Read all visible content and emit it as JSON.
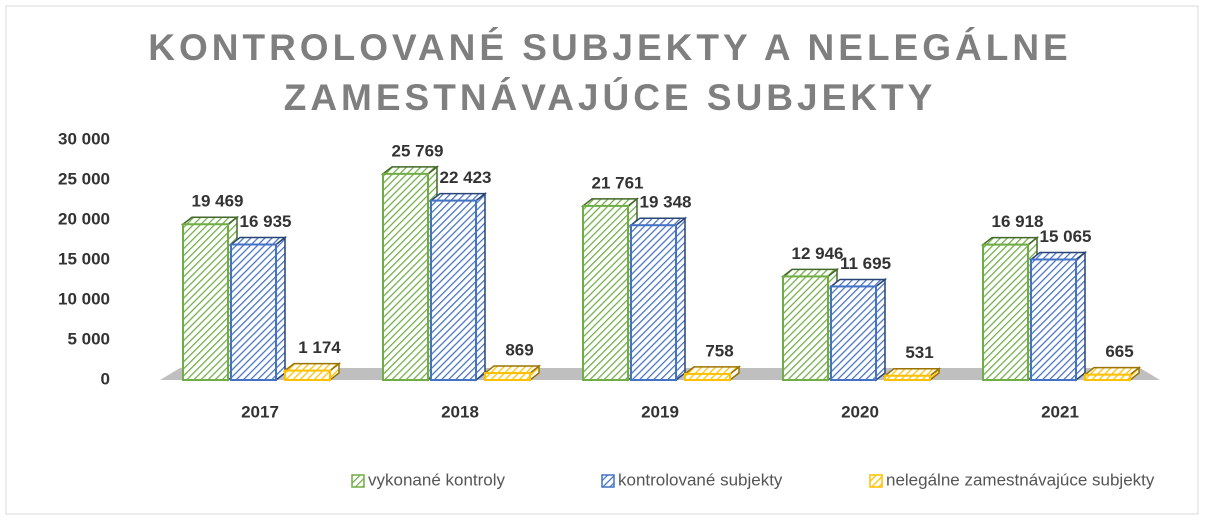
{
  "chart_data": {
    "type": "bar3d",
    "title": [
      "KONTROLOVANÉ SUBJEKTY A NELEGÁLNE",
      "ZAMESTNÁVAJÚCE SUBJEKTY"
    ],
    "categories": [
      "2017",
      "2018",
      "2019",
      "2020",
      "2021"
    ],
    "series": [
      {
        "name": "vykonané kontroly",
        "color": "#70ad47",
        "values": [
          19469,
          25769,
          21761,
          12946,
          16918
        ],
        "value_labels": [
          "19 469",
          "25 769",
          "21 761",
          "12 946",
          "16 918"
        ]
      },
      {
        "name": "kontrolované subjekty",
        "color": "#4472c4",
        "values": [
          16935,
          22423,
          19348,
          11695,
          15065
        ],
        "value_labels": [
          "16 935",
          "22 423",
          "19 348",
          "11 695",
          "15 065"
        ]
      },
      {
        "name": "nelegálne zamestnávajúce subjekty",
        "color": "#ffc000",
        "values": [
          1174,
          869,
          758,
          531,
          665
        ],
        "value_labels": [
          "1 174",
          "869",
          "758",
          "531",
          "665"
        ]
      }
    ],
    "ylim": [
      0,
      30000
    ],
    "yticks": [
      0,
      {
        "value": 5000,
        "label": "5 000"
      },
      {
        "value": 10000,
        "label": "10 000"
      },
      {
        "value": 15000,
        "label": "15 000"
      },
      {
        "value": 20000,
        "label": "20 000"
      },
      {
        "value": 25000,
        "label": "25 000"
      },
      {
        "value": 30000,
        "label": "30 000"
      }
    ],
    "legend": "bottom",
    "grid": false
  }
}
